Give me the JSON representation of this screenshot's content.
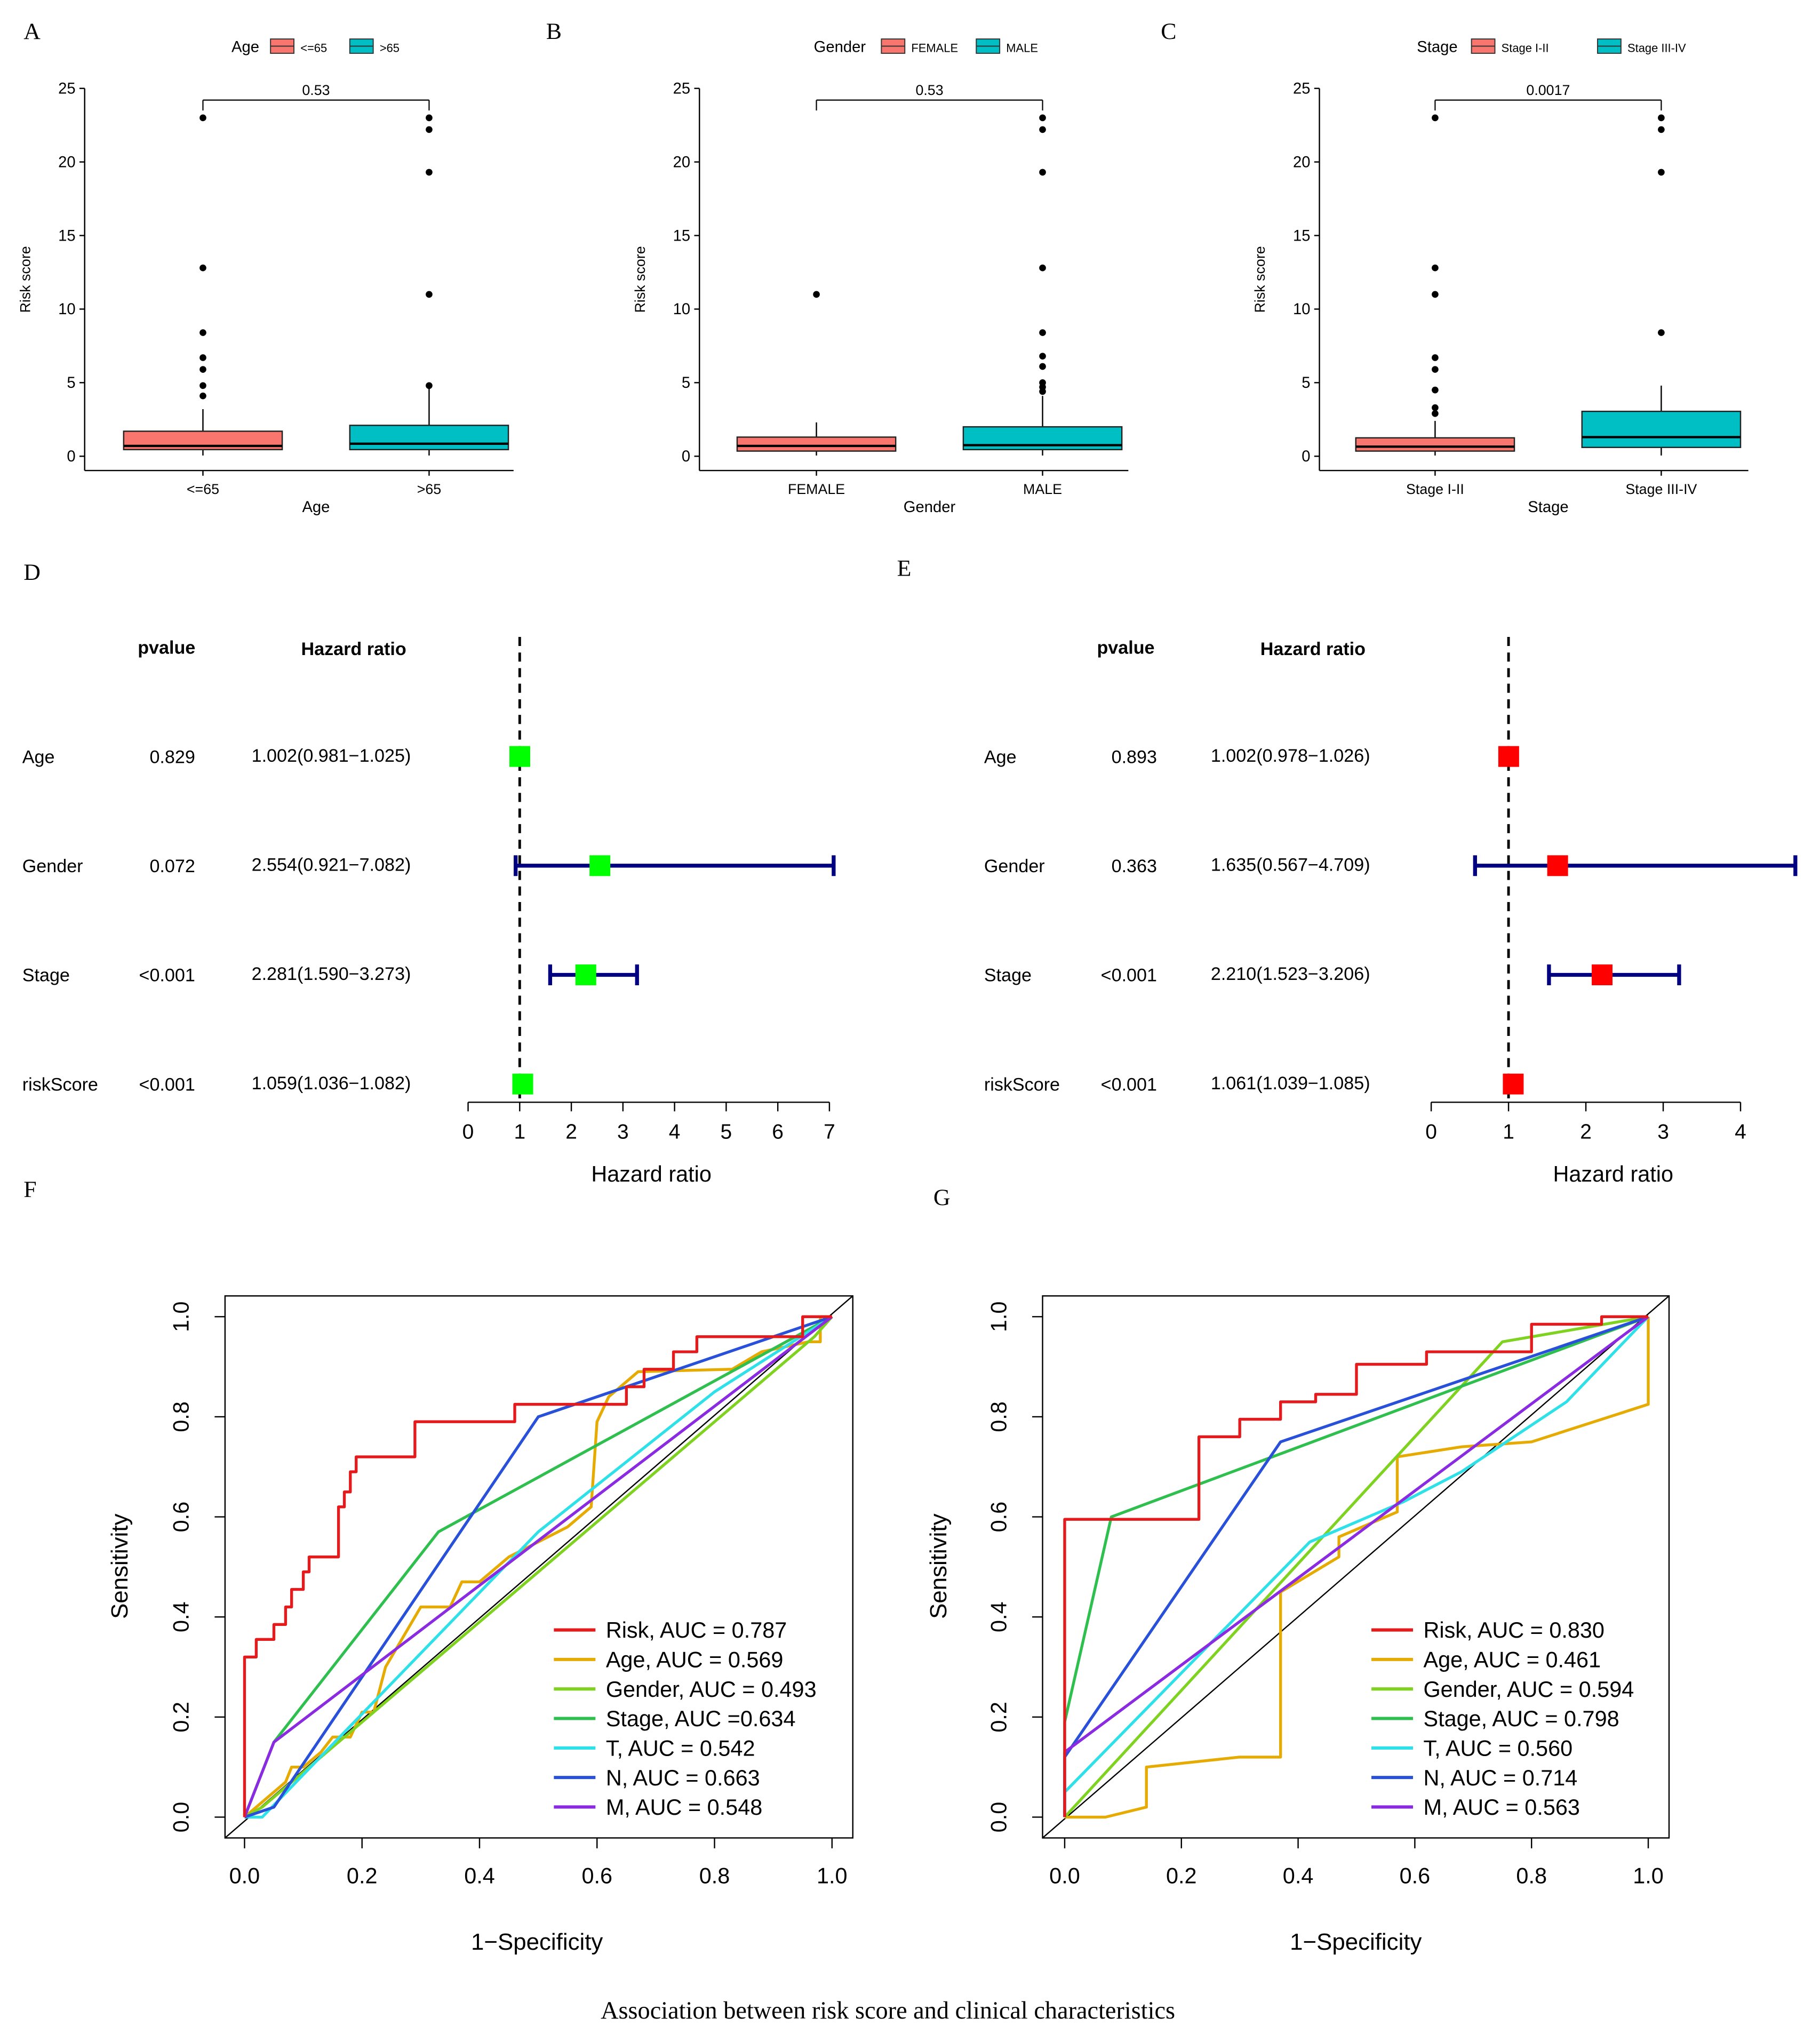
{
  "caption": "Association between risk score and clinical characteristics",
  "chart_data": [
    {
      "panel": "A",
      "type": "box",
      "legend_title": "Age",
      "xlabel": "Age",
      "ylabel": "Risk score",
      "ylim": [
        0,
        25
      ],
      "yticks": [
        "0",
        "5",
        "10",
        "15",
        "20",
        "25"
      ],
      "pvalue": "0.53",
      "groups": [
        {
          "name": "<=65",
          "color": "#F8766D",
          "q1": 0.45,
          "median": 0.7,
          "q3": 1.7,
          "whisker_low": 0.05,
          "whisker_high": 3.2,
          "outliers": [
            4.1,
            4.8,
            5.9,
            6.7,
            8.4,
            12.8,
            23.0
          ]
        },
        {
          "name": ">65",
          "color": "#00BFC4",
          "q1": 0.45,
          "median": 0.85,
          "q3": 2.1,
          "whisker_low": 0.05,
          "whisker_high": 4.7,
          "outliers": [
            4.8,
            11.0,
            19.3,
            22.2,
            23.0
          ]
        }
      ]
    },
    {
      "panel": "B",
      "type": "box",
      "legend_title": "Gender",
      "xlabel": "Gender",
      "ylabel": "Risk score",
      "ylim": [
        0,
        25
      ],
      "yticks": [
        "0",
        "5",
        "10",
        "15",
        "20",
        "25"
      ],
      "pvalue": "0.53",
      "groups": [
        {
          "name": "FEMALE",
          "color": "#F8766D",
          "q1": 0.35,
          "median": 0.7,
          "q3": 1.3,
          "whisker_low": 0.05,
          "whisker_high": 2.3,
          "outliers": [
            11.0
          ]
        },
        {
          "name": "MALE",
          "color": "#00BFC4",
          "q1": 0.45,
          "median": 0.75,
          "q3": 2.0,
          "whisker_low": 0.05,
          "whisker_high": 4.1,
          "outliers": [
            4.4,
            4.7,
            5.0,
            6.1,
            6.8,
            8.4,
            12.8,
            19.3,
            22.2,
            23.0
          ]
        }
      ]
    },
    {
      "panel": "C",
      "type": "box",
      "legend_title": "Stage",
      "xlabel": "Stage",
      "ylabel": "Risk score",
      "ylim": [
        0,
        25
      ],
      "yticks": [
        "0",
        "5",
        "10",
        "15",
        "20",
        "25"
      ],
      "pvalue": "0.0017",
      "groups": [
        {
          "name": "Stage I-II",
          "color": "#F8766D",
          "q1": 0.35,
          "median": 0.65,
          "q3": 1.25,
          "whisker_low": 0.05,
          "whisker_high": 2.4,
          "outliers": [
            2.9,
            3.3,
            4.5,
            5.9,
            6.7,
            11.0,
            12.8,
            23.0
          ]
        },
        {
          "name": "Stage III-IV",
          "color": "#00BFC4",
          "q1": 0.6,
          "median": 1.3,
          "q3": 3.05,
          "whisker_low": 0.05,
          "whisker_high": 4.8,
          "outliers": [
            8.4,
            19.3,
            22.2,
            23.0
          ]
        }
      ]
    },
    {
      "panel": "D",
      "type": "forest",
      "col_pvalue": "pvalue",
      "col_hr": "Hazard ratio",
      "xlabel": "Hazard ratio",
      "marker_color": "#00FF00",
      "line_color": "#000080",
      "xlim": [
        0,
        7
      ],
      "xticks": [
        "0",
        "1",
        "2",
        "3",
        "4",
        "5",
        "6",
        "7"
      ],
      "rows": [
        {
          "name": "Age",
          "pvalue": "0.829",
          "hr_text": "1.002(0.981−1.025)",
          "hr": 1.002,
          "low": 0.981,
          "high": 1.025
        },
        {
          "name": "Gender",
          "pvalue": "0.072",
          "hr_text": "2.554(0.921−7.082)",
          "hr": 2.554,
          "low": 0.921,
          "high": 7.082
        },
        {
          "name": "Stage",
          "pvalue": "<0.001",
          "hr_text": "2.281(1.590−3.273)",
          "hr": 2.281,
          "low": 1.59,
          "high": 3.273
        },
        {
          "name": "riskScore",
          "pvalue": "<0.001",
          "hr_text": "1.059(1.036−1.082)",
          "hr": 1.059,
          "low": 1.036,
          "high": 1.082
        }
      ]
    },
    {
      "panel": "E",
      "type": "forest",
      "col_pvalue": "pvalue",
      "col_hr": "Hazard ratio",
      "xlabel": "Hazard ratio",
      "marker_color": "#FF0000",
      "line_color": "#000080",
      "xlim": [
        0,
        4
      ],
      "xticks": [
        "0",
        "1",
        "2",
        "3",
        "4"
      ],
      "rows": [
        {
          "name": "Age",
          "pvalue": "0.893",
          "hr_text": "1.002(0.978−1.026)",
          "hr": 1.002,
          "low": 0.978,
          "high": 1.026
        },
        {
          "name": "Gender",
          "pvalue": "0.363",
          "hr_text": "1.635(0.567−4.709)",
          "hr": 1.635,
          "low": 0.567,
          "high": 4.709
        },
        {
          "name": "Stage",
          "pvalue": "<0.001",
          "hr_text": "2.210(1.523−3.206)",
          "hr": 2.21,
          "low": 1.523,
          "high": 3.206
        },
        {
          "name": "riskScore",
          "pvalue": "<0.001",
          "hr_text": "1.061(1.039−1.085)",
          "hr": 1.061,
          "low": 1.039,
          "high": 1.085
        }
      ]
    },
    {
      "panel": "F",
      "type": "line",
      "xlabel": "1−Specificity",
      "ylabel": "Sensitivity",
      "xlim": [
        0,
        1
      ],
      "ylim": [
        0,
        1
      ],
      "xticks": [
        "0.0",
        "0.2",
        "0.4",
        "0.6",
        "0.8",
        "1.0"
      ],
      "yticks": [
        "0.0",
        "0.2",
        "0.4",
        "0.6",
        "0.8",
        "1.0"
      ],
      "series": [
        {
          "name": "Risk",
          "auc": "0.787",
          "legend": "Risk, AUC = 0.787",
          "color": "#E41A1C",
          "points": [
            [
              0,
              0
            ],
            [
              0,
              0.32
            ],
            [
              0.02,
              0.32
            ],
            [
              0.02,
              0.355
            ],
            [
              0.05,
              0.355
            ],
            [
              0.05,
              0.385
            ],
            [
              0.07,
              0.385
            ],
            [
              0.07,
              0.42
            ],
            [
              0.08,
              0.42
            ],
            [
              0.08,
              0.455
            ],
            [
              0.1,
              0.455
            ],
            [
              0.1,
              0.49
            ],
            [
              0.11,
              0.49
            ],
            [
              0.11,
              0.52
            ],
            [
              0.16,
              0.52
            ],
            [
              0.16,
              0.62
            ],
            [
              0.17,
              0.62
            ],
            [
              0.17,
              0.65
            ],
            [
              0.18,
              0.65
            ],
            [
              0.18,
              0.69
            ],
            [
              0.19,
              0.69
            ],
            [
              0.19,
              0.72
            ],
            [
              0.29,
              0.72
            ],
            [
              0.29,
              0.79
            ],
            [
              0.46,
              0.79
            ],
            [
              0.46,
              0.825
            ],
            [
              0.65,
              0.825
            ],
            [
              0.65,
              0.86
            ],
            [
              0.68,
              0.86
            ],
            [
              0.68,
              0.895
            ],
            [
              0.73,
              0.895
            ],
            [
              0.73,
              0.93
            ],
            [
              0.77,
              0.93
            ],
            [
              0.77,
              0.96
            ],
            [
              0.95,
              0.96
            ],
            [
              0.95,
              1.0
            ],
            [
              1.0,
              1.0
            ]
          ]
        },
        {
          "name": "Age",
          "auc": "0.569",
          "legend": "Age, AUC = 0.569",
          "color": "#E6AB02",
          "points": [
            [
              0,
              0
            ],
            [
              0.07,
              0.07
            ],
            [
              0.08,
              0.1
            ],
            [
              0.1,
              0.1
            ],
            [
              0.13,
              0.13
            ],
            [
              0.15,
              0.16
            ],
            [
              0.18,
              0.16
            ],
            [
              0.2,
              0.21
            ],
            [
              0.22,
              0.21
            ],
            [
              0.24,
              0.3
            ],
            [
              0.3,
              0.42
            ],
            [
              0.35,
              0.42
            ],
            [
              0.37,
              0.47
            ],
            [
              0.4,
              0.47
            ],
            [
              0.45,
              0.52
            ],
            [
              0.55,
              0.58
            ],
            [
              0.59,
              0.62
            ],
            [
              0.6,
              0.79
            ],
            [
              0.62,
              0.84
            ],
            [
              0.67,
              0.89
            ],
            [
              0.83,
              0.895
            ],
            [
              0.88,
              0.93
            ],
            [
              0.96,
              0.95
            ],
            [
              0.98,
              0.95
            ],
            [
              0.98,
              1.0
            ],
            [
              1.0,
              1.0
            ]
          ]
        },
        {
          "name": "Gender",
          "auc": "0.493",
          "legend": "Gender, AUC = 0.493",
          "color": "#7FD320",
          "points": [
            [
              0,
              0
            ],
            [
              0.03,
              0.02
            ],
            [
              0.97,
              0.96
            ],
            [
              1,
              1
            ]
          ]
        },
        {
          "name": "Stage",
          "auc": "=0.634",
          "legend": "Stage, AUC =0.634",
          "color": "#2FBF4E",
          "points": [
            [
              0,
              0
            ],
            [
              0.05,
              0.15
            ],
            [
              0.33,
              0.57
            ],
            [
              1,
              1
            ]
          ]
        },
        {
          "name": "T",
          "auc": "0.542",
          "legend": "T, AUC = 0.542",
          "color": "#2EE0E8",
          "points": [
            [
              0,
              0
            ],
            [
              0.03,
              0
            ],
            [
              0.5,
              0.57
            ],
            [
              0.8,
              0.85
            ],
            [
              1,
              1
            ]
          ]
        },
        {
          "name": "N",
          "auc": "0.663",
          "legend": "N, AUC = 0.663",
          "color": "#2850D8",
          "points": [
            [
              0,
              0
            ],
            [
              0.05,
              0.02
            ],
            [
              0.5,
              0.8
            ],
            [
              1,
              1
            ]
          ]
        },
        {
          "name": "M",
          "auc": "0.548",
          "legend": "M, AUC = 0.548",
          "color": "#8A2BE2",
          "points": [
            [
              0,
              0
            ],
            [
              0.05,
              0.15
            ],
            [
              1,
              1
            ]
          ]
        }
      ]
    },
    {
      "panel": "G",
      "type": "line",
      "xlabel": "1−Specificity",
      "ylabel": "Sensitivity",
      "xlim": [
        0,
        1
      ],
      "ylim": [
        0,
        1
      ],
      "xticks": [
        "0.0",
        "0.2",
        "0.4",
        "0.6",
        "0.8",
        "1.0"
      ],
      "yticks": [
        "0.0",
        "0.2",
        "0.4",
        "0.6",
        "0.8",
        "1.0"
      ],
      "series": [
        {
          "name": "Risk",
          "auc": "0.830",
          "legend": "Risk, AUC = 0.830",
          "color": "#E41A1C",
          "points": [
            [
              0,
              0
            ],
            [
              0,
              0.595
            ],
            [
              0.23,
              0.595
            ],
            [
              0.23,
              0.76
            ],
            [
              0.3,
              0.76
            ],
            [
              0.3,
              0.795
            ],
            [
              0.37,
              0.795
            ],
            [
              0.37,
              0.83
            ],
            [
              0.43,
              0.83
            ],
            [
              0.43,
              0.845
            ],
            [
              0.5,
              0.845
            ],
            [
              0.5,
              0.905
            ],
            [
              0.62,
              0.905
            ],
            [
              0.62,
              0.93
            ],
            [
              0.8,
              0.93
            ],
            [
              0.8,
              0.985
            ],
            [
              0.92,
              0.985
            ],
            [
              0.92,
              1.0
            ],
            [
              1.0,
              1.0
            ]
          ]
        },
        {
          "name": "Age",
          "auc": "0.461",
          "legend": "Age, AUC = 0.461",
          "color": "#E6AB02",
          "points": [
            [
              0,
              0
            ],
            [
              0.07,
              0
            ],
            [
              0.14,
              0.02
            ],
            [
              0.14,
              0.1
            ],
            [
              0.3,
              0.12
            ],
            [
              0.37,
              0.12
            ],
            [
              0.37,
              0.45
            ],
            [
              0.47,
              0.52
            ],
            [
              0.47,
              0.56
            ],
            [
              0.57,
              0.61
            ],
            [
              0.57,
              0.72
            ],
            [
              0.68,
              0.74
            ],
            [
              0.8,
              0.75
            ],
            [
              1,
              0.825
            ],
            [
              1,
              1
            ]
          ]
        },
        {
          "name": "Gender",
          "auc": "0.594",
          "legend": "Gender, AUC = 0.594",
          "color": "#7FD320",
          "points": [
            [
              0,
              0
            ],
            [
              0.75,
              0.95
            ],
            [
              1,
              1
            ]
          ]
        },
        {
          "name": "Stage",
          "auc": "0.798",
          "legend": "Stage, AUC = 0.798",
          "color": "#2FBF4E",
          "points": [
            [
              0,
              0
            ],
            [
              0,
              0.19
            ],
            [
              0.08,
              0.6
            ],
            [
              1,
              1
            ]
          ]
        },
        {
          "name": "T",
          "auc": "0.560",
          "legend": "T, AUC = 0.560",
          "color": "#2EE0E8",
          "points": [
            [
              0,
              0.05
            ],
            [
              0.42,
              0.55
            ],
            [
              0.58,
              0.63
            ],
            [
              0.68,
              0.69
            ],
            [
              0.86,
              0.83
            ],
            [
              1,
              1
            ]
          ]
        },
        {
          "name": "N",
          "auc": "0.714",
          "legend": "N, AUC = 0.714",
          "color": "#2850D8",
          "points": [
            [
              0,
              0
            ],
            [
              0,
              0.12
            ],
            [
              0.37,
              0.75
            ],
            [
              1,
              1
            ]
          ]
        },
        {
          "name": "M",
          "auc": "0.563",
          "legend": "M, AUC = 0.563",
          "color": "#8A2BE2",
          "points": [
            [
              0,
              0
            ],
            [
              0,
              0.13
            ],
            [
              1,
              1
            ]
          ]
        }
      ]
    }
  ]
}
